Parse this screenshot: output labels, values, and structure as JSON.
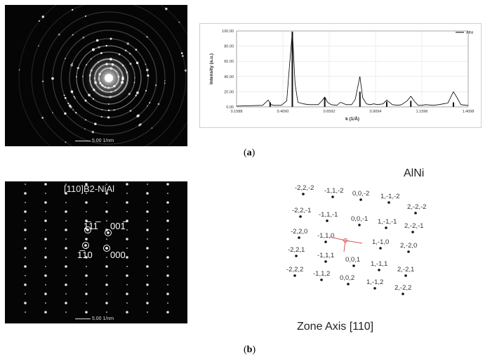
{
  "panel_a": {
    "caption_letter": "a",
    "scale_bar_label": "5.00 1/nm",
    "chart_data": {
      "type": "line",
      "title": "",
      "xlabel": "k (1/Å)",
      "ylabel": "Intensity (a.u.)",
      "xlim": [
        0.1588,
        1.4098
      ],
      "ylim": [
        0,
        100
      ],
      "x_ticks": [
        "0.1588",
        "0.4090",
        "0.6592",
        "0.9094",
        "1.1596",
        "1.4098"
      ],
      "y_ticks": [
        "0.00",
        "20.00",
        "40.00",
        "60.00",
        "80.00",
        "100.00"
      ],
      "legend": {
        "placement": "top-right",
        "entries": [
          "AlNi"
        ]
      },
      "grid": true,
      "series": [
        {
          "name": "AlNi",
          "x": [
            0.1588,
            0.3,
            0.33,
            0.345,
            0.36,
            0.4,
            0.43,
            0.445,
            0.46,
            0.475,
            0.49,
            0.52,
            0.55,
            0.6,
            0.62,
            0.635,
            0.65,
            0.67,
            0.7,
            0.72,
            0.75,
            0.78,
            0.8,
            0.825,
            0.84,
            0.86,
            0.88,
            0.9,
            0.92,
            0.95,
            0.97,
            1.0,
            1.03,
            1.05,
            1.08,
            1.1,
            1.12,
            1.14,
            1.16,
            1.18,
            1.22,
            1.25,
            1.3,
            1.33,
            1.35,
            1.37,
            1.4,
            1.4098
          ],
          "y": [
            1,
            2,
            9,
            3,
            2,
            2,
            8,
            55,
            99,
            30,
            6,
            4,
            3,
            3,
            8,
            13,
            6,
            3,
            2,
            6,
            3,
            3,
            10,
            40,
            12,
            4,
            3,
            4,
            3,
            4,
            9,
            3,
            2,
            3,
            8,
            14,
            7,
            2,
            2,
            3,
            2,
            3,
            5,
            20,
            12,
            3,
            2,
            2
          ]
        }
      ],
      "bars": {
        "x": [
          0.34,
          0.46,
          0.635,
          0.825,
          0.97,
          1.1,
          1.33
        ],
        "y": [
          6,
          99,
          12,
          20,
          7,
          8,
          6
        ]
      }
    }
  },
  "panel_b": {
    "caption_letter": "b",
    "image_title": "[110]B2-NiAl",
    "scale_bar_label": "5.00 1/nm",
    "spot_labels": [
      "1̅11̅",
      "001̅",
      "1̅10",
      "000"
    ],
    "diagram_title": "AlNi",
    "zone_axis": "Zone Axis [110]",
    "reflections": [
      "-2,2,-2",
      "-1,1,-2",
      "0,0,-2",
      "1,-1,-2",
      "2,-2,-2",
      "-2,2,-1",
      "-1,1,-1",
      "0,0,-1",
      "1,-1,-1",
      "2,-2,-1",
      "-2,2,0",
      "-1,1,0",
      "1,-1,0",
      "2,-2,0",
      "-2,2,1",
      "-1,1,1",
      "0,0,1",
      "1,-1,1",
      "2,-2,1",
      "-2,2,2",
      "-1,1,2",
      "0,0,2",
      "1,-1,2",
      "2,-2,2"
    ]
  },
  "colors": {
    "background": "#ffffff",
    "image_bg": "#050505",
    "curve": "#000000",
    "vector": "#d9534f"
  }
}
